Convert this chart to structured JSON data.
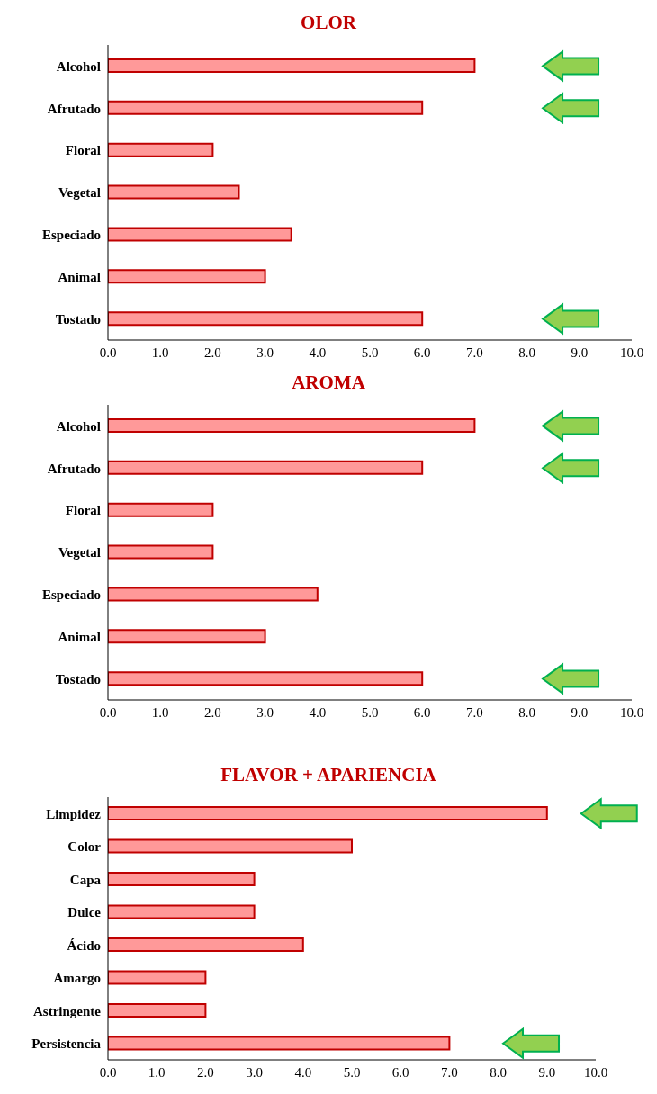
{
  "chart_data": [
    {
      "type": "bar",
      "orientation": "horizontal",
      "title": "OLOR",
      "categories": [
        "Alcohol",
        "Afrutado",
        "Floral",
        "Vegetal",
        "Especiado",
        "Animal",
        "Tostado"
      ],
      "values": [
        7,
        6,
        2,
        2.5,
        3.5,
        3,
        6
      ],
      "color": "#ff9999",
      "xlim": [
        0,
        10
      ],
      "xticks": [
        {
          "value": 0,
          "label": "0.0"
        },
        {
          "value": 1,
          "label": "1.0"
        },
        {
          "value": 2,
          "label": "2.0"
        },
        {
          "value": 3,
          "label": "3.0"
        },
        {
          "value": 4,
          "label": "4.0"
        },
        {
          "value": 5,
          "label": "5.0"
        },
        {
          "value": 6,
          "label": "6.0"
        },
        {
          "value": 7,
          "label": "7.0"
        },
        {
          "value": 8,
          "label": "8.0"
        },
        {
          "value": 9,
          "label": "9.0"
        },
        {
          "value": 10,
          "label": "10.0"
        }
      ]
    },
    {
      "type": "bar",
      "orientation": "horizontal",
      "title": "AROMA",
      "categories": [
        "Alcohol",
        "Afrutado",
        "Floral",
        "Vegetal",
        "Especiado",
        "Animal",
        "Tostado"
      ],
      "values": [
        7,
        6,
        2,
        2,
        4,
        3,
        6
      ],
      "color": "#ff9999",
      "xlim": [
        0,
        10
      ],
      "xticks": [
        {
          "value": 0,
          "label": "0.0"
        },
        {
          "value": 1,
          "label": "1.0"
        },
        {
          "value": 2,
          "label": "2.0"
        },
        {
          "value": 3,
          "label": "3.0"
        },
        {
          "value": 4,
          "label": "4.0"
        },
        {
          "value": 5,
          "label": "5.0"
        },
        {
          "value": 6,
          "label": "6.0"
        },
        {
          "value": 7,
          "label": "7.0"
        },
        {
          "value": 8,
          "label": "8.0"
        },
        {
          "value": 9,
          "label": "9.0"
        },
        {
          "value": 10,
          "label": "10.0"
        }
      ]
    },
    {
      "type": "bar",
      "orientation": "horizontal",
      "title": "FLAVOR + APARIENCIA",
      "categories": [
        "Limpidez",
        "Color",
        "Capa",
        "Dulce",
        "Ácido",
        "Amargo",
        "Astringente",
        "Persistencia"
      ],
      "values": [
        9,
        5,
        3,
        3,
        4,
        2,
        2,
        7
      ],
      "color": "#ff9999",
      "xlim": [
        0,
        10
      ],
      "xticks": [
        {
          "value": 0,
          "label": "0.0"
        },
        {
          "value": 1,
          "label": "1.0"
        },
        {
          "value": 2,
          "label": "2.0"
        },
        {
          "value": 3,
          "label": "3.0"
        },
        {
          "value": 4,
          "label": "4.0"
        },
        {
          "value": 5,
          "label": "5.0"
        },
        {
          "value": 6,
          "label": "6.0"
        },
        {
          "value": 7,
          "label": "7.0"
        },
        {
          "value": 8,
          "label": "8.0"
        },
        {
          "value": 9,
          "label": "9.0"
        },
        {
          "value": 10,
          "label": "10.0"
        }
      ]
    }
  ]
}
